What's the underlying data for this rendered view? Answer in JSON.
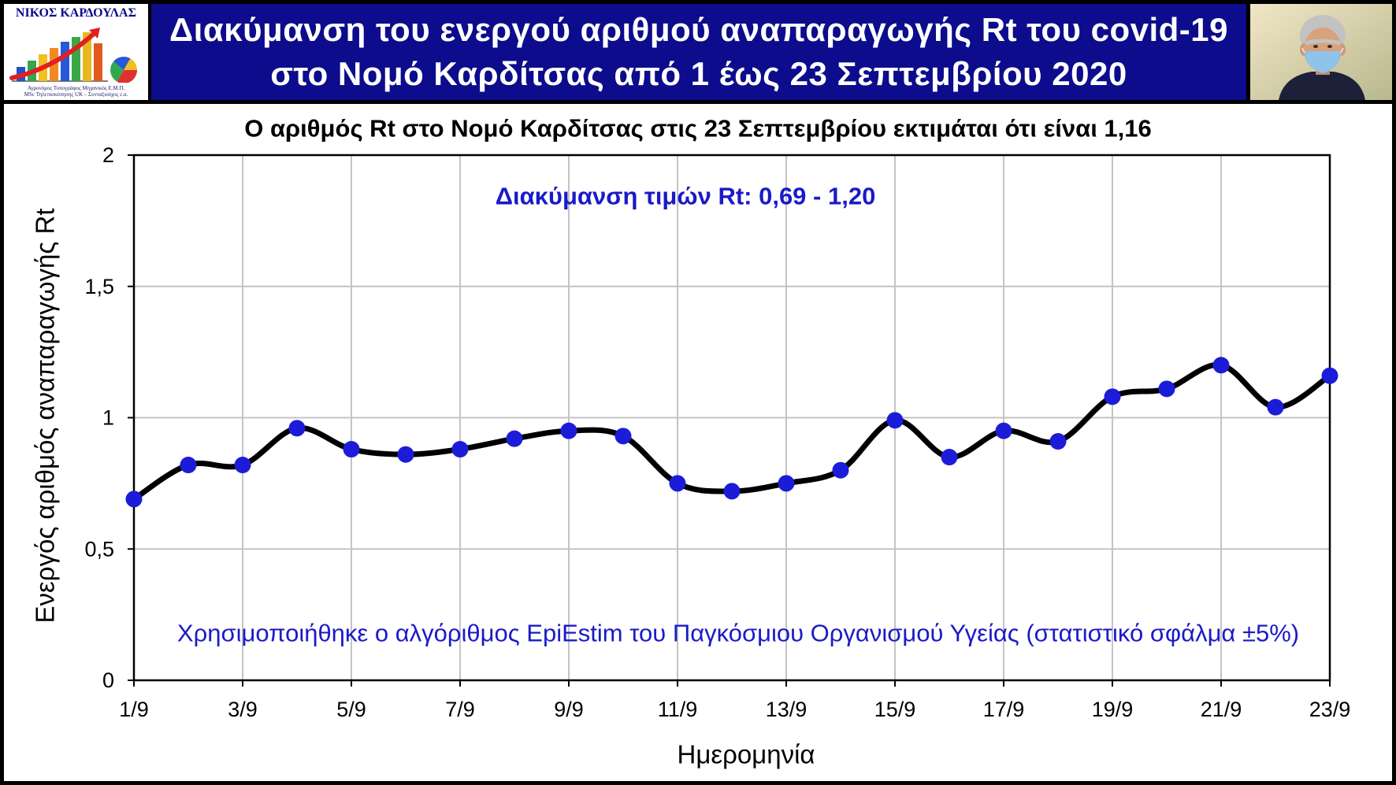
{
  "header": {
    "logo": {
      "name": "ΝΙΚΟΣ ΚΑΡΔΟΥΛΑΣ",
      "line1": "Αγρονόμος Τοπογράφος Μηχανικός Ε.Μ.Π.",
      "line2": "MSc Τηλεπισκόπησης UK – Συνταξιούχος ε.α."
    },
    "title_line1": "Διακύμανση του ενεργού αριθμού αναπαραγωγής Rt του covid-19",
    "title_line2": "στο Νομό Καρδίτσας από 1 έως 23 Σεπτεμβρίου 2020"
  },
  "colors": {
    "header_bg": "#0c0c8c",
    "marker": "#1c1cd8",
    "line": "#000000",
    "annotation": "#1a1ac8",
    "grid": "#c4c4c4",
    "axis": "#000000"
  },
  "chart_data": {
    "type": "line",
    "title": "Ο αριθμός Rt στο Νομό Καρδίτσας στις 23 Σεπτεμβρίου εκτιμάται ότι είναι 1,16",
    "xlabel": "Ημερομηνία",
    "ylabel": "Ενεργός αριθμός αναπαραγωγής Rt",
    "categories": [
      "1/9",
      "2/9",
      "3/9",
      "4/9",
      "5/9",
      "6/9",
      "7/9",
      "8/9",
      "9/9",
      "10/9",
      "11/9",
      "12/9",
      "13/9",
      "14/9",
      "15/9",
      "16/9",
      "17/9",
      "18/9",
      "19/9",
      "20/9",
      "21/9",
      "22/9",
      "23/9"
    ],
    "values": [
      0.69,
      0.82,
      0.82,
      0.96,
      0.88,
      0.86,
      0.88,
      0.92,
      0.95,
      0.93,
      0.75,
      0.72,
      0.75,
      0.8,
      0.99,
      0.85,
      0.95,
      0.91,
      1.08,
      1.11,
      1.2,
      1.04,
      1.16
    ],
    "ylim": [
      0,
      2
    ],
    "y_ticks": [
      0,
      0.5,
      1,
      1.5,
      2
    ],
    "y_tick_labels": [
      "0",
      "0,5",
      "1",
      "1,5",
      "2"
    ],
    "grid": true,
    "smooth": true,
    "markers": "circle",
    "annotations": [
      "Διακύμανση τιμών Rt: 0,69 - 1,20",
      "Χρησιμοποιήθηκε ο αλγόριθμος EpiEstim του Παγκόσμιου Οργανισμού Υγείας (στατιστικό σφάλμα ±5%)"
    ]
  }
}
